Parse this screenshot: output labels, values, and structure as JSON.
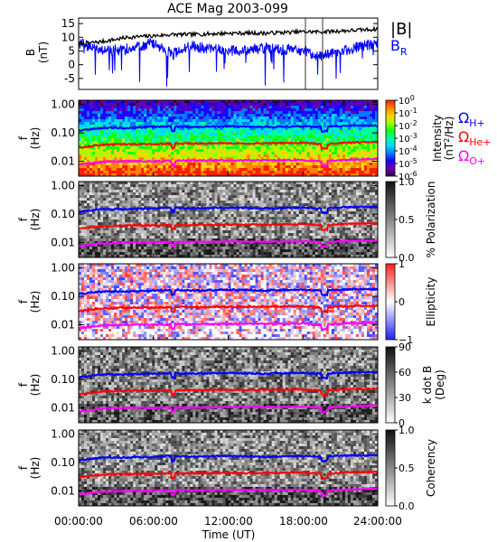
{
  "title": "ACE Mag 2003-099",
  "x_axis": {
    "label": "Time (UT)",
    "ticks": [
      "00:00:00",
      "06:00:00",
      "12:00:00",
      "18:00:00",
      "24:00:00"
    ],
    "range_hours": [
      0,
      24
    ]
  },
  "top_panel": {
    "ylabel_main": "B",
    "ylabel_unit": "(nT)",
    "yticks": [
      "15",
      "10",
      "5",
      "0",
      "-5"
    ],
    "ylim": [
      -9,
      17
    ],
    "legend": {
      "b_mag": "|B|",
      "b_r": "B",
      "b_r_sub": "R"
    },
    "colors": {
      "b_mag": "#000000",
      "b_r": "#0000ff"
    }
  },
  "spectral_panels": {
    "y_label_f": "f",
    "y_label_hz": "(Hz)",
    "yticks": [
      "1.00",
      "0.10",
      "0.01"
    ],
    "ylim_hz": [
      0.003,
      1.4
    ],
    "ion_line_colors": {
      "h": "#0000ff",
      "he": "#ff0000",
      "o": "#ff00ff"
    }
  },
  "panels": [
    {
      "id": "intensity",
      "cbar_title_1": "Intensity",
      "cbar_title_2": "(nT",
      "cbar_sup": "2",
      "cbar_title_3": "/Hz)",
      "cbar_ticks": [
        "10",
        "10",
        "10",
        "10",
        "10",
        "10",
        "10"
      ],
      "cbar_exps": [
        "0",
        "-1",
        "-2",
        "-3",
        "-4",
        "-5",
        "-6"
      ]
    },
    {
      "id": "polarization",
      "cbar_title": "% Polarization",
      "cbar_ticks": [
        "1.0",
        "0.5",
        "0.0"
      ]
    },
    {
      "id": "ellipticity",
      "cbar_title": "Ellipticity",
      "cbar_ticks": [
        "1",
        "0",
        "−1"
      ]
    },
    {
      "id": "kdotb",
      "cbar_title_1": "k dot B",
      "cbar_title_2": "(Deg)",
      "cbar_ticks": [
        "90",
        "60",
        "30",
        "0"
      ]
    },
    {
      "id": "coherency",
      "cbar_title": "Coherency",
      "cbar_ticks": [
        "1.0",
        "0.5",
        "0.0"
      ]
    }
  ],
  "ion_legend": [
    {
      "symbol": "Ω",
      "sub": "H+",
      "color": "#0000ff"
    },
    {
      "symbol": "Ω",
      "sub": "He+",
      "color": "#ff0000"
    },
    {
      "symbol": "Ω",
      "sub": "O+",
      "color": "#ff00ff"
    }
  ],
  "chart_data": {
    "type": "line",
    "title": "ACE Mag 2003-099",
    "xlabel": "Time (UT)",
    "x_hours": [
      0,
      2,
      4,
      6,
      7.5,
      9,
      12,
      15,
      18,
      19.5,
      22,
      24
    ],
    "series": [
      {
        "name": "|B|",
        "values": [
          7.5,
          8.5,
          10,
          10.5,
          11,
          11,
          11.5,
          11.5,
          12,
          12,
          12.5,
          13
        ]
      },
      {
        "name": "B_R",
        "values": [
          8,
          5,
          6,
          8,
          4,
          7,
          5,
          6,
          5,
          3,
          6,
          8
        ]
      },
      {
        "name": "ΩH+ (Hz)",
        "values": [
          0.12,
          0.15,
          0.15,
          0.16,
          0.17,
          0.16,
          0.17,
          0.16,
          0.17,
          0.16,
          0.18,
          0.18
        ]
      },
      {
        "name": "ΩHe+ (Hz)",
        "values": [
          0.03,
          0.038,
          0.04,
          0.04,
          0.042,
          0.042,
          0.043,
          0.043,
          0.045,
          0.04,
          0.046,
          0.047
        ]
      },
      {
        "name": "ΩO+ (Hz)",
        "values": [
          0.0075,
          0.0095,
          0.01,
          0.01,
          0.0105,
          0.0105,
          0.0108,
          0.0108,
          0.011,
          0.01,
          0.0115,
          0.012
        ]
      }
    ]
  }
}
